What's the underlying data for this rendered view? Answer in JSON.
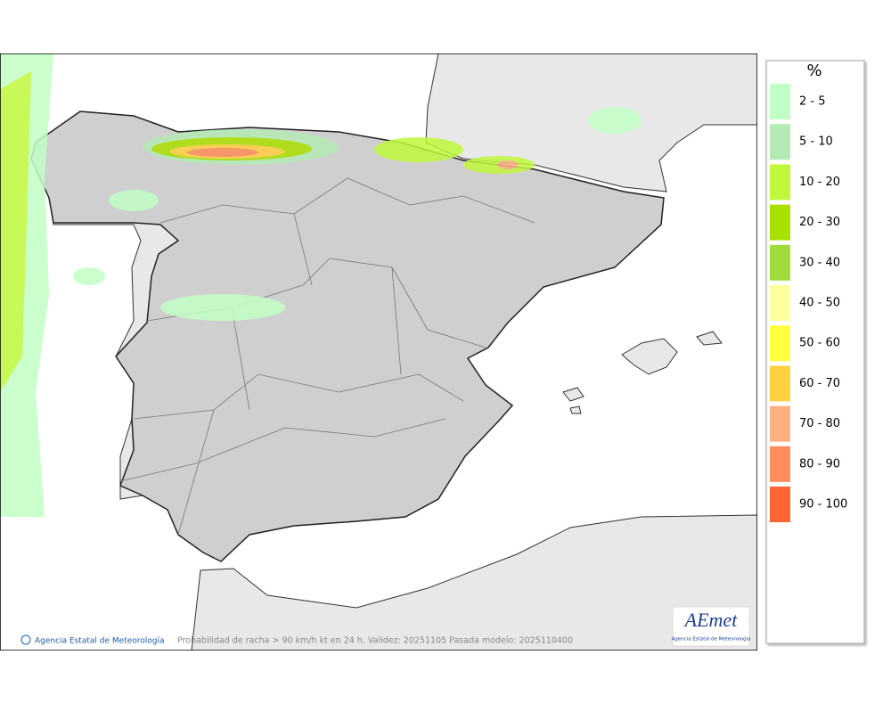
{
  "legend": {
    "title": "%",
    "items": [
      {
        "label": "2 - 5",
        "color": "#c2ffc6"
      },
      {
        "label": "5 - 10",
        "color": "#b4ebb4"
      },
      {
        "label": "10 - 20",
        "color": "#c0f83c"
      },
      {
        "label": "20 - 30",
        "color": "#aae000"
      },
      {
        "label": "30 - 40",
        "color": "#a0dc3c"
      },
      {
        "label": "40 - 50",
        "color": "#ffffa0"
      },
      {
        "label": "50 - 60",
        "color": "#ffff40"
      },
      {
        "label": "60 - 70",
        "color": "#ffd040"
      },
      {
        "label": "70 - 80",
        "color": "#ffb080"
      },
      {
        "label": "80 - 90",
        "color": "#ff8c5a"
      },
      {
        "label": "90 - 100",
        "color": "#ff6432"
      }
    ]
  },
  "footer": {
    "credit": "Agencia Estatal de Meteorología",
    "caption": "Probabilidad de racha > 90 km/h kt en 24 h. Validez: 20251105 Pasada modelo: 2025110400"
  },
  "logo": {
    "name": "AEmet",
    "subtitle": "Agencia Estatal de Meteorología"
  }
}
